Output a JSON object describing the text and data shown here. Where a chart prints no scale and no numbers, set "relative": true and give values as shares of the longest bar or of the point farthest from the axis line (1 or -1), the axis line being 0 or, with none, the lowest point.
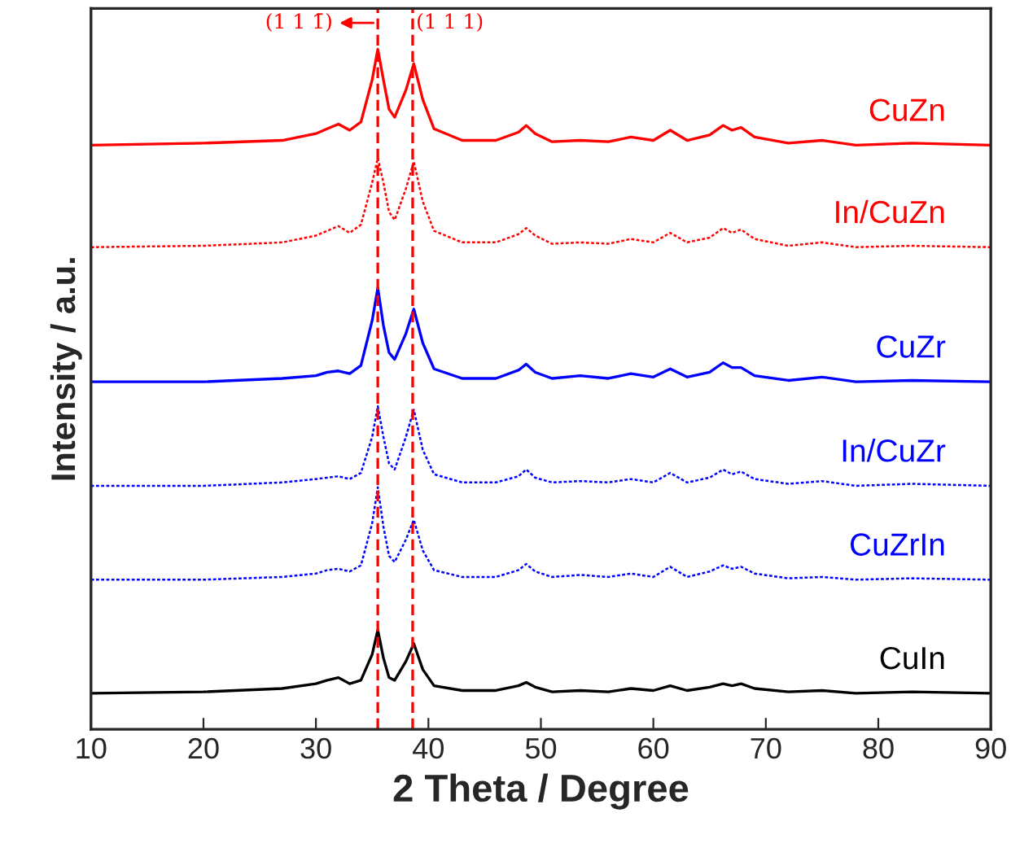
{
  "chart_data": {
    "type": "line",
    "relative": true,
    "xlabel": "2 Theta / Degree",
    "ylabel": "Intensity / a.u.",
    "xlim": [
      10,
      90
    ],
    "xticks": [
      10,
      20,
      30,
      40,
      50,
      60,
      70,
      80,
      90
    ],
    "grid": false,
    "legend": false,
    "tick_labels": "x",
    "x": [
      10,
      20,
      27,
      30,
      31,
      32,
      33,
      34,
      35,
      35.5,
      36,
      36.5,
      37,
      38,
      38.7,
      39.5,
      40.5,
      43,
      46,
      48,
      48.7,
      49.5,
      51,
      53.5,
      56,
      58,
      60,
      61.5,
      63,
      65,
      66.2,
      67,
      67.8,
      69,
      72,
      75,
      78,
      83,
      90
    ],
    "series": [
      {
        "name": "CuZn",
        "color": "#ff0000",
        "line_style": "solid",
        "values": [
          0.859,
          0.862,
          0.866,
          0.876,
          0.883,
          0.89,
          0.881,
          0.893,
          0.955,
          1.0,
          0.955,
          0.912,
          0.9,
          0.94,
          0.979,
          0.926,
          0.883,
          0.866,
          0.866,
          0.878,
          0.888,
          0.876,
          0.864,
          0.866,
          0.864,
          0.871,
          0.866,
          0.881,
          0.866,
          0.874,
          0.888,
          0.881,
          0.885,
          0.871,
          0.862,
          0.866,
          0.859,
          0.862,
          0.859
        ]
      },
      {
        "name": "In/CuZn",
        "color": "#ff0000",
        "line_style": "dotted",
        "values": [
          0.709,
          0.711,
          0.716,
          0.726,
          0.733,
          0.74,
          0.73,
          0.742,
          0.804,
          0.84,
          0.804,
          0.761,
          0.749,
          0.795,
          0.835,
          0.776,
          0.733,
          0.716,
          0.716,
          0.728,
          0.737,
          0.726,
          0.714,
          0.716,
          0.714,
          0.721,
          0.716,
          0.73,
          0.716,
          0.723,
          0.737,
          0.73,
          0.735,
          0.721,
          0.711,
          0.716,
          0.709,
          0.711,
          0.709
        ]
      },
      {
        "name": "CuZr",
        "color": "#0000ff",
        "line_style": "solid",
        "values": [
          0.511,
          0.511,
          0.516,
          0.52,
          0.525,
          0.527,
          0.523,
          0.535,
          0.601,
          0.649,
          0.594,
          0.554,
          0.544,
          0.582,
          0.618,
          0.568,
          0.53,
          0.516,
          0.516,
          0.528,
          0.537,
          0.525,
          0.516,
          0.52,
          0.516,
          0.523,
          0.518,
          0.53,
          0.518,
          0.525,
          0.539,
          0.532,
          0.532,
          0.52,
          0.513,
          0.518,
          0.511,
          0.513,
          0.511
        ]
      },
      {
        "name": "In/CuZr",
        "color": "#0000ff",
        "line_style": "dotted",
        "values": [
          0.358,
          0.358,
          0.363,
          0.368,
          0.37,
          0.372,
          0.368,
          0.377,
          0.43,
          0.475,
          0.43,
          0.391,
          0.382,
          0.43,
          0.47,
          0.411,
          0.375,
          0.363,
          0.363,
          0.372,
          0.382,
          0.37,
          0.363,
          0.365,
          0.363,
          0.368,
          0.363,
          0.377,
          0.363,
          0.37,
          0.382,
          0.375,
          0.379,
          0.368,
          0.361,
          0.365,
          0.358,
          0.361,
          0.358
        ]
      },
      {
        "name": "CuZrIn",
        "color": "#0000ff",
        "line_style": "dotted",
        "values": [
          0.22,
          0.22,
          0.224,
          0.229,
          0.234,
          0.236,
          0.232,
          0.241,
          0.303,
          0.356,
          0.298,
          0.255,
          0.246,
          0.279,
          0.308,
          0.263,
          0.234,
          0.224,
          0.224,
          0.234,
          0.243,
          0.232,
          0.224,
          0.227,
          0.224,
          0.229,
          0.224,
          0.239,
          0.224,
          0.232,
          0.241,
          0.236,
          0.239,
          0.229,
          0.222,
          0.224,
          0.22,
          0.222,
          0.22
        ]
      },
      {
        "name": "CuIn",
        "color": "#000000",
        "line_style": "solid",
        "values": [
          0.053,
          0.055,
          0.06,
          0.067,
          0.072,
          0.076,
          0.067,
          0.072,
          0.11,
          0.146,
          0.105,
          0.076,
          0.072,
          0.1,
          0.126,
          0.088,
          0.064,
          0.057,
          0.057,
          0.064,
          0.069,
          0.062,
          0.055,
          0.057,
          0.055,
          0.06,
          0.057,
          0.064,
          0.057,
          0.062,
          0.067,
          0.064,
          0.067,
          0.06,
          0.055,
          0.057,
          0.053,
          0.055,
          0.053
        ]
      }
    ],
    "ref_lines": [
      {
        "axis": "x",
        "value": 35.5,
        "color": "#ff0000",
        "line_style": "dashed"
      },
      {
        "axis": "x",
        "value": 38.6,
        "color": "#ff0000",
        "line_style": "dashed"
      }
    ],
    "annotations": [
      "(1 1 1̄)",
      "(1 1 1)"
    ]
  }
}
